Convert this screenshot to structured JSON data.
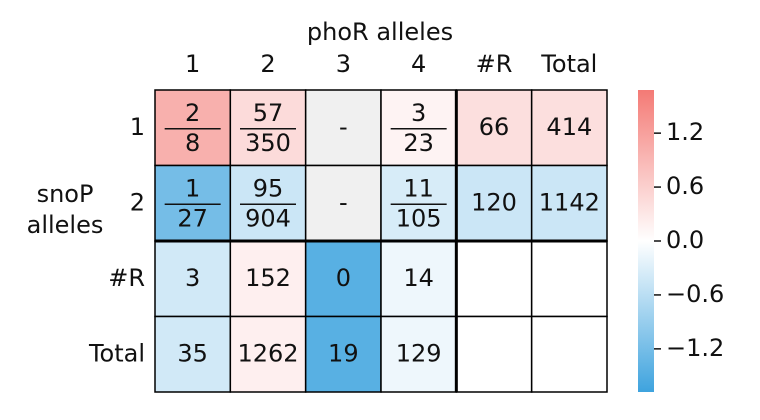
{
  "chart_data": {
    "type": "heatmap",
    "x_label": "phoR alleles",
    "y_label": [
      "snoP",
      "alleles"
    ],
    "columns": [
      "1",
      "2",
      "3",
      "4",
      "#R",
      "Total"
    ],
    "rows": [
      "1",
      "2",
      "#R",
      "Total"
    ],
    "cells": [
      [
        {
          "num": "2",
          "den": "8"
        },
        {
          "num": "57",
          "den": "350"
        },
        "-",
        {
          "num": "3",
          "den": "23"
        },
        "66",
        "414"
      ],
      [
        {
          "num": "1",
          "den": "27"
        },
        {
          "num": "95",
          "den": "904"
        },
        "-",
        {
          "num": "11",
          "den": "105"
        },
        "120",
        "1142"
      ],
      [
        "3",
        "152",
        "0",
        "14",
        null,
        null
      ],
      [
        "35",
        "1262",
        "19",
        "129",
        null,
        null
      ]
    ],
    "values": [
      [
        1.0,
        0.45,
        null,
        0.15,
        0.4,
        0.4
      ],
      [
        -1.2,
        -0.45,
        null,
        -0.35,
        -0.45,
        -0.45
      ],
      [
        -0.4,
        0.2,
        -1.45,
        -0.15,
        null,
        null
      ],
      [
        -0.4,
        0.2,
        -1.45,
        -0.15,
        null,
        null
      ]
    ],
    "clim": [
      -1.68,
      1.68
    ],
    "cticks": [
      {
        "value": 1.2,
        "label": "1.2"
      },
      {
        "value": 0.6,
        "label": "0.6"
      },
      {
        "value": 0.0,
        "label": "0.0"
      },
      {
        "value": -0.6,
        "label": "−0.6"
      },
      {
        "value": -1.2,
        "label": "−1.2"
      }
    ],
    "colors": {
      "low": "#3ea3de",
      "mid": "#ffffff",
      "high": "#f47a75"
    }
  }
}
